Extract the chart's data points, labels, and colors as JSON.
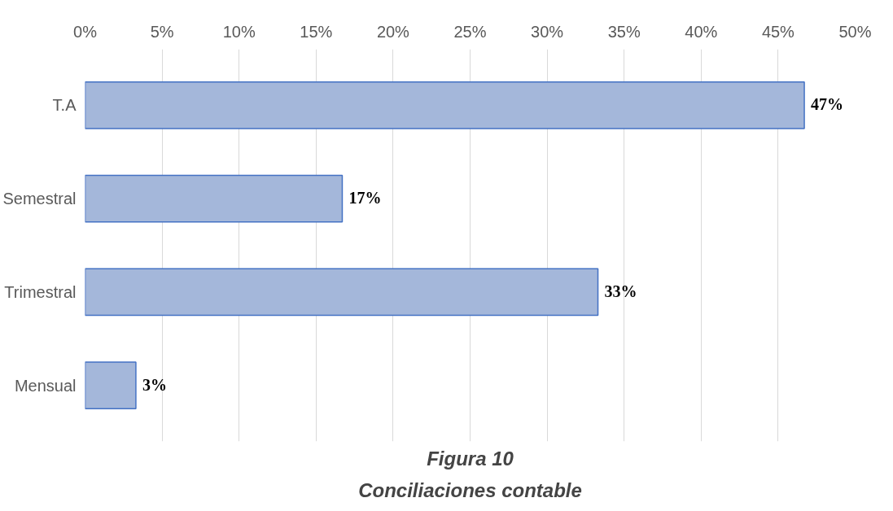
{
  "chart_data": {
    "type": "bar",
    "orientation": "horizontal",
    "title": "Figura 10",
    "subtitle": "Conciliaciones contable",
    "categories": [
      "T.A",
      "Semestral",
      "Trimestral",
      "Mensual"
    ],
    "values": [
      46.7,
      16.7,
      33.3,
      3.3
    ],
    "value_labels": [
      "47%",
      "17%",
      "33%",
      "3%"
    ],
    "color": "#a4b7da",
    "xlim": [
      0,
      50
    ],
    "xticks": [
      {
        "value": 0,
        "label": "0%"
      },
      {
        "value": 5,
        "label": "5%"
      },
      {
        "value": 10,
        "label": "10%"
      },
      {
        "value": 15,
        "label": "15%"
      },
      {
        "value": 20,
        "label": "20%"
      },
      {
        "value": 25,
        "label": "25%"
      },
      {
        "value": 30,
        "label": "30%"
      },
      {
        "value": 35,
        "label": "35%"
      },
      {
        "value": 40,
        "label": "40%"
      },
      {
        "value": 45,
        "label": "45%"
      },
      {
        "value": 50,
        "label": "50%"
      }
    ],
    "grid": "x"
  }
}
